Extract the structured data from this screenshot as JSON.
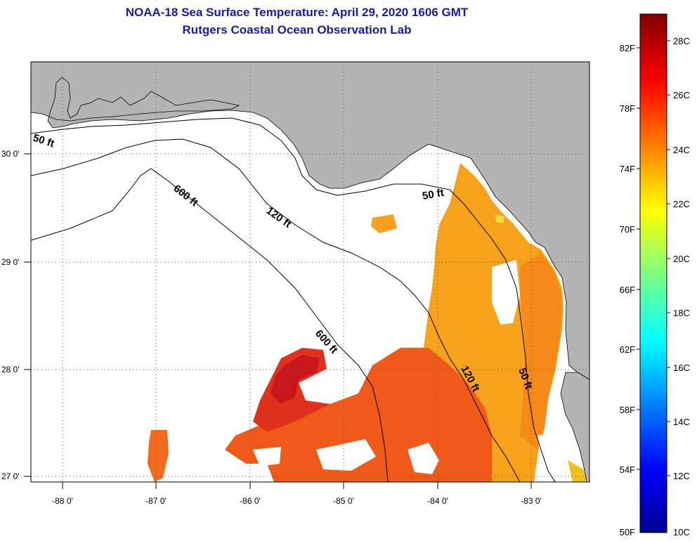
{
  "title": {
    "line1": "NOAA-18 Sea Surface Temperature:  April 29, 2020 1606 GMT",
    "line2": "Rutgers Coastal Ocean Observation Lab"
  },
  "colors": {
    "title": "#1a1aa6",
    "land": "#b4b4b4",
    "water_missing": "#ffffff"
  },
  "x_axis": {
    "ticks": [
      {
        "lon": -88,
        "label": "-88 0'"
      },
      {
        "lon": -87,
        "label": "-87 0'"
      },
      {
        "lon": -86,
        "label": "-86 0'"
      },
      {
        "lon": -85,
        "label": "-85 0'"
      },
      {
        "lon": -84,
        "label": "-84 0'"
      },
      {
        "lon": -83,
        "label": "-83 0'"
      }
    ]
  },
  "y_axis": {
    "ticks": [
      {
        "lat": 30,
        "label": "30 0'"
      },
      {
        "lat": 29,
        "label": "29 0'"
      },
      {
        "lat": 28,
        "label": "28 0'"
      },
      {
        "lat": 27,
        "label": "27 0'"
      }
    ]
  },
  "isobaths": [
    {
      "label": "50 ft",
      "id": "a"
    },
    {
      "label": "600 ft",
      "id": "b"
    },
    {
      "label": "120 ft",
      "id": "c"
    },
    {
      "label": "50 ft",
      "id": "d"
    },
    {
      "label": "600 ft",
      "id": "e"
    },
    {
      "label": "120 ft",
      "id": "f"
    },
    {
      "label": "50 ft",
      "id": "g"
    }
  ],
  "colorbar": {
    "fahrenheit": [
      "82F",
      "78F",
      "74F",
      "70F",
      "66F",
      "62F",
      "58F",
      "54F",
      "50F"
    ],
    "celsius": [
      "28C",
      "26C",
      "24C",
      "22C",
      "20C",
      "18C",
      "16C",
      "14C",
      "12C",
      "10C"
    ]
  }
}
